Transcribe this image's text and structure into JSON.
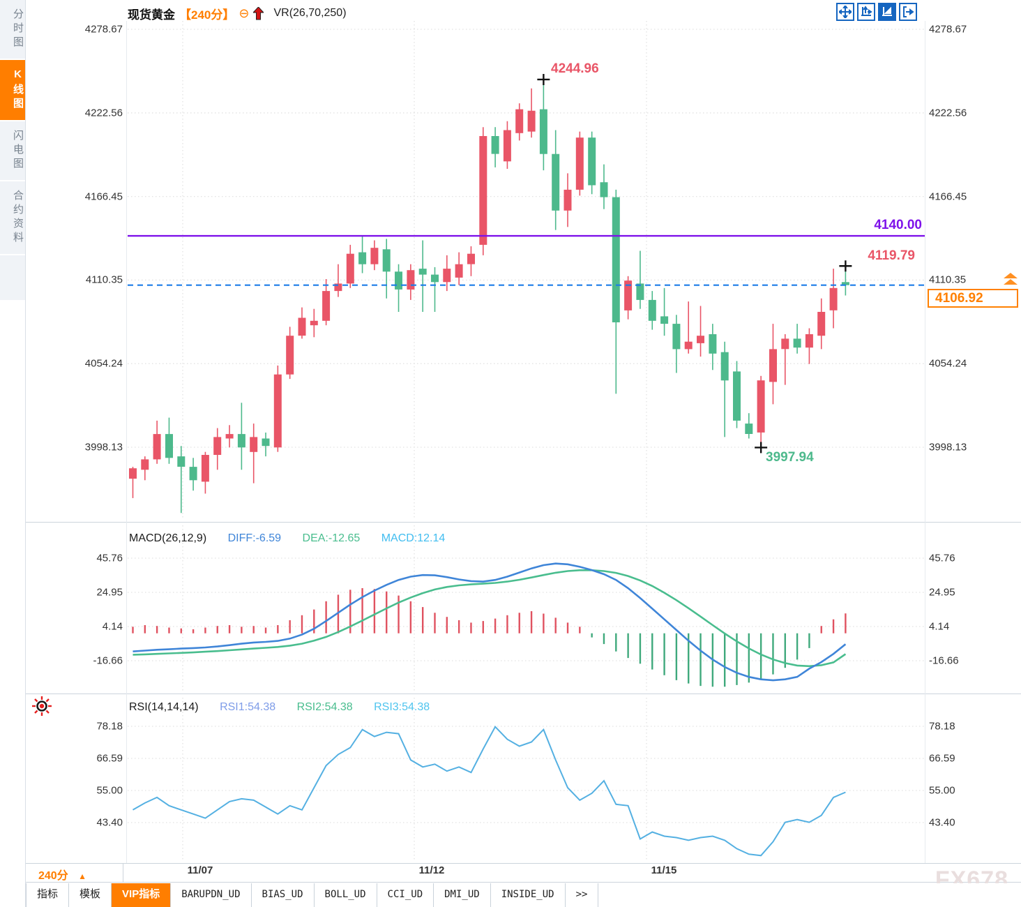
{
  "sidebar": {
    "tabs": [
      {
        "label": "分时图",
        "active": false
      },
      {
        "label": "K线图",
        "active": true
      },
      {
        "label": "闪电图",
        "active": false
      },
      {
        "label": "合约资料",
        "active": false
      }
    ]
  },
  "header": {
    "symbol": "现货黄金",
    "period": "【240分】",
    "collapse_icon": "⊖",
    "overlay_indicator": "VR(26,70,250)"
  },
  "toolbar": {
    "icons": [
      "move-crosshair-icon",
      "fit-axis-icon",
      "auto-scale-icon",
      "scroll-to-last-icon"
    ]
  },
  "annotations": {
    "swing_high": "4244.96",
    "horizontal_line_price": "4140.00",
    "last_bar_high": "4119.79",
    "current_price": "4106.92",
    "swing_low": "3997.94"
  },
  "indicators": {
    "macd_title": "MACD(26,12,9)",
    "diff_label": "DIFF:-6.59",
    "dea_label": "DEA:-12.65",
    "macd_label": "MACD:12.14",
    "rsi_title": "RSI(14,14,14)",
    "rsi1_label": "RSI1:54.38",
    "rsi2_label": "RSI2:54.38",
    "rsi3_label": "RSI3:54.38"
  },
  "footer": {
    "period": "240分",
    "period_arrow": "▲",
    "tabs": [
      {
        "label": "指标",
        "active": false,
        "mono": false
      },
      {
        "label": "模板",
        "active": false,
        "mono": false
      },
      {
        "label": "VIP指标",
        "active": true,
        "mono": false
      },
      {
        "label": "BARUPDN_UD",
        "active": false,
        "mono": true
      },
      {
        "label": "BIAS_UD",
        "active": false,
        "mono": true
      },
      {
        "label": "BOLL_UD",
        "active": false,
        "mono": true
      },
      {
        "label": "CCI_UD",
        "active": false,
        "mono": true
      },
      {
        "label": "DMI_UD",
        "active": false,
        "mono": true
      },
      {
        "label": "INSIDE_UD",
        "active": false,
        "mono": true
      },
      {
        "label": ">>",
        "active": false,
        "mono": true
      }
    ],
    "watermark": "FX678"
  },
  "colors": {
    "up": "#e95567",
    "down": "#4db98c",
    "accent_orange": "#ff7e00",
    "purple_line": "#7e12ea",
    "dashed_blue": "#1b7ce8",
    "diff_blue": "#3f85d8",
    "dea_green": "#49bd8e",
    "rsi_line": "#54b0e2",
    "toolbar_blue": "#1565c0",
    "grid": "#e3e3e3"
  },
  "chart_data": [
    {
      "type": "candlestick",
      "title": "现货黄金 240分",
      "ylim": [
        3949,
        4285
      ],
      "yticks": [
        4278.67,
        4222.56,
        4166.45,
        4110.35,
        4054.24,
        3998.13
      ],
      "xtick_dates": [
        "11/07",
        "11/12",
        "11/15"
      ],
      "hlines": [
        {
          "value": 4140.0,
          "style": "solid",
          "color": "#7e12ea"
        },
        {
          "value": 4106.92,
          "style": "dashed",
          "color": "#1b7ce8"
        }
      ],
      "markers": [
        {
          "bar": 34,
          "price": 4244.96,
          "kind": "high"
        },
        {
          "bar": 52,
          "price": 3997.94,
          "kind": "low"
        },
        {
          "bar": 59,
          "price": 4119.79,
          "kind": "high"
        }
      ],
      "ohlc": [
        [
          3977,
          3985,
          3964,
          3984
        ],
        [
          3983,
          3992,
          3976,
          3990
        ],
        [
          3990,
          4016,
          3987,
          4007
        ],
        [
          4007,
          4018,
          3987,
          3991
        ],
        [
          3992,
          3999,
          3954,
          3985
        ],
        [
          3985,
          3991,
          3969,
          3976
        ],
        [
          3975,
          3995,
          3967,
          3993
        ],
        [
          3993,
          4011,
          3983,
          4005
        ],
        [
          4004,
          4013,
          3998,
          4007
        ],
        [
          4007,
          4028,
          3983,
          3998
        ],
        [
          3995,
          4014,
          3974,
          4005
        ],
        [
          4004,
          4008,
          3992,
          3999
        ],
        [
          3998,
          4053,
          3995,
          4047
        ],
        [
          4047,
          4079,
          4044,
          4073
        ],
        [
          4073,
          4092,
          4071,
          4085
        ],
        [
          4080,
          4091,
          4072,
          4083
        ],
        [
          4083,
          4111,
          4080,
          4103
        ],
        [
          4103,
          4121,
          4099,
          4108
        ],
        [
          4108,
          4134,
          4105,
          4128
        ],
        [
          4129,
          4140,
          4115,
          4121
        ],
        [
          4121,
          4137,
          4117,
          4132
        ],
        [
          4131,
          4138,
          4098,
          4116
        ],
        [
          4116,
          4121,
          4089,
          4104
        ],
        [
          4104,
          4121,
          4097,
          4117
        ],
        [
          4118,
          4137,
          4089,
          4114
        ],
        [
          4114,
          4119,
          4089,
          4109
        ],
        [
          4109,
          4127,
          4103,
          4118
        ],
        [
          4112,
          4129,
          4107,
          4121
        ],
        [
          4121,
          4133,
          4113,
          4128
        ],
        [
          4134,
          4213,
          4127,
          4207
        ],
        [
          4207,
          4213,
          4186,
          4195
        ],
        [
          4190,
          4217,
          4185,
          4211
        ],
        [
          4209,
          4229,
          4204,
          4225
        ],
        [
          4210,
          4239,
          4206,
          4224
        ],
        [
          4225,
          4244.96,
          4184,
          4195
        ],
        [
          4195,
          4211,
          4144,
          4157
        ],
        [
          4157,
          4182,
          4146,
          4171
        ],
        [
          4171,
          4210,
          4167,
          4206
        ],
        [
          4206,
          4210,
          4168,
          4174
        ],
        [
          4176,
          4188,
          4158,
          4166
        ],
        [
          4166,
          4171,
          4034,
          4082
        ],
        [
          4090,
          4113,
          4084,
          4110
        ],
        [
          4108,
          4130,
          4091,
          4097
        ],
        [
          4097,
          4103,
          4077,
          4083
        ],
        [
          4086,
          4105,
          4073,
          4081
        ],
        [
          4081,
          4087,
          4048,
          4064
        ],
        [
          4064,
          4096,
          4061,
          4069
        ],
        [
          4068,
          4093,
          4059,
          4073
        ],
        [
          4074,
          4081,
          4050,
          4061
        ],
        [
          4062,
          4069,
          4005,
          4043
        ],
        [
          4049,
          4056,
          4011,
          4016
        ],
        [
          4014,
          4021,
          4004,
          4007
        ],
        [
          4008,
          4046,
          3997.94,
          4043
        ],
        [
          4042,
          4081,
          4027,
          4064
        ],
        [
          4064,
          4074,
          4040,
          4071
        ],
        [
          4071,
          4081,
          4061,
          4065
        ],
        [
          4065,
          4078,
          4054,
          4074
        ],
        [
          4073,
          4098,
          4064,
          4089
        ],
        [
          4090,
          4118,
          4078,
          4105
        ],
        [
          4109,
          4119.79,
          4100,
          4106.92
        ]
      ]
    },
    {
      "type": "macd",
      "title": "MACD(26,12,9)",
      "yticks": [
        45.76,
        24.95,
        4.14,
        -16.66
      ],
      "current": {
        "diff": -6.59,
        "dea": -12.65,
        "macd": 12.14
      },
      "diff": [
        -11,
        -10.5,
        -10,
        -9.7,
        -9.3,
        -9,
        -8.6,
        -8,
        -7.2,
        -6.3,
        -5.6,
        -5.2,
        -4.6,
        -3.2,
        -0.8,
        2.8,
        7.5,
        12.5,
        17.5,
        22,
        26,
        29.5,
        32.5,
        34.5,
        35.5,
        35.3,
        34.2,
        32.8,
        31.8,
        31.5,
        32.5,
        34.5,
        37,
        39.5,
        41.5,
        42.5,
        42,
        40.5,
        38.5,
        36,
        32.5,
        27.5,
        21.5,
        15,
        8.5,
        2,
        -4.5,
        -10.5,
        -16,
        -20.5,
        -24,
        -26.5,
        -28,
        -28.6,
        -28,
        -26.5,
        -21.5,
        -17.5,
        -12.5,
        -6.59
      ],
      "dea": [
        -13,
        -12.8,
        -12.5,
        -12.2,
        -11.9,
        -11.6,
        -11.2,
        -10.8,
        -10.3,
        -9.8,
        -9.3,
        -8.8,
        -8.3,
        -7.5,
        -6.3,
        -4.5,
        -2.2,
        0.8,
        4.2,
        7.8,
        11.5,
        15.2,
        18.7,
        21.8,
        24.5,
        26.7,
        28.2,
        29.2,
        29.8,
        30.2,
        30.7,
        31.5,
        32.6,
        34,
        35.5,
        36.9,
        37.9,
        38.4,
        38.4,
        37.9,
        36.8,
        34.9,
        32.2,
        28.8,
        24.7,
        20.2,
        15.3,
        10.2,
        5,
        -0.1,
        -4.9,
        -9.2,
        -12.9,
        -15.9,
        -18.1,
        -19.6,
        -20,
        -19.4,
        -17.7,
        -12.65
      ],
      "hist": [
        4,
        5,
        4.5,
        3.5,
        3,
        2.5,
        3.5,
        4.5,
        5,
        4,
        4.5,
        3.5,
        5,
        8,
        11,
        14.5,
        19.5,
        23.5,
        26.5,
        27.5,
        27,
        25.5,
        23,
        19.5,
        16,
        12.5,
        10,
        8,
        6.5,
        7.5,
        9,
        11,
        12.5,
        13.5,
        12,
        9.5,
        6.5,
        4,
        -2.5,
        -6.5,
        -11,
        -15,
        -18.5,
        -22,
        -25.5,
        -28.5,
        -30.5,
        -32,
        -32.5,
        -32.5,
        -31.5,
        -30,
        -28,
        -25,
        -21,
        -16,
        -9,
        4.5,
        8.5,
        12.14
      ]
    },
    {
      "type": "line",
      "title": "RSI(14,14,14)",
      "yticks": [
        78.18,
        66.59,
        55.0,
        43.4
      ],
      "current": {
        "rsi1": 54.38,
        "rsi2": 54.38,
        "rsi3": 54.38
      },
      "values": [
        48,
        50.5,
        52.5,
        49.5,
        48,
        46.5,
        45,
        48,
        51,
        52,
        51.5,
        49,
        46.5,
        49.5,
        48,
        56,
        64,
        68,
        70.5,
        77,
        74.5,
        76,
        75.5,
        66,
        63.5,
        64.5,
        62,
        63.5,
        61.5,
        70,
        78,
        73.5,
        71,
        72.5,
        77,
        66,
        56,
        51.5,
        54,
        58.5,
        50,
        49.5,
        37.5,
        40,
        38.5,
        38,
        37,
        38,
        38.5,
        37,
        34,
        32,
        31.5,
        36.5,
        43.5,
        44.5,
        43.5,
        46,
        52.5,
        54.38
      ]
    }
  ]
}
